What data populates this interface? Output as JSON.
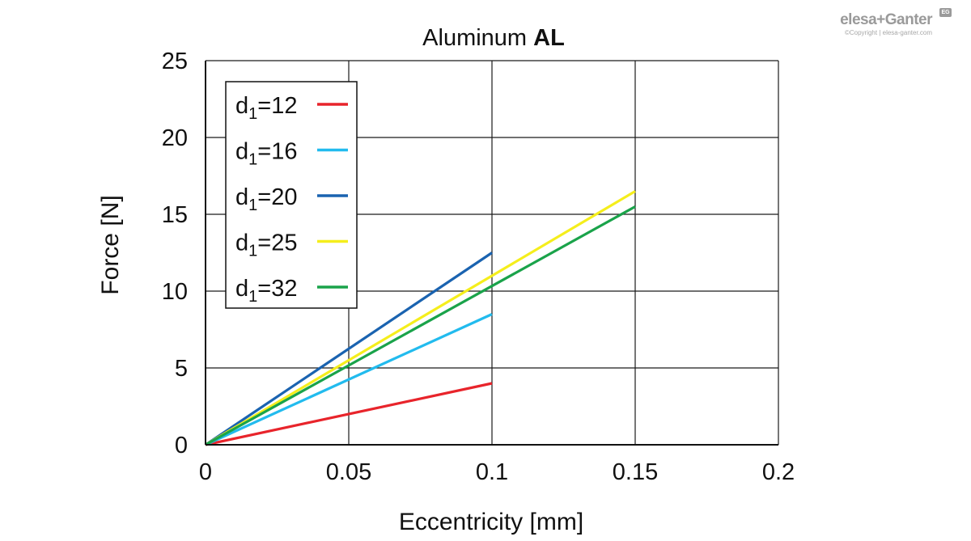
{
  "logo": {
    "main": "elesa+Ganter",
    "sub": "©Copyright | elesa-ganter.com",
    "badge": "EG"
  },
  "chart_data": {
    "type": "line",
    "title_regular": "Aluminum ",
    "title_bold": "AL",
    "xlabel": "Eccentricity [mm]",
    "ylabel": "Force [N]",
    "xlim": [
      0,
      0.2
    ],
    "ylim": [
      0,
      25
    ],
    "x_ticks": [
      0,
      0.05,
      0.1,
      0.15,
      0.2
    ],
    "x_tick_labels": [
      "0",
      "0.05",
      "0.1",
      "0.15",
      "0.2"
    ],
    "y_ticks": [
      0,
      5,
      10,
      15,
      20,
      25
    ],
    "y_tick_labels": [
      "0",
      "5",
      "10",
      "15",
      "20",
      "25"
    ],
    "grid": true,
    "legend_position": "top-left",
    "series": [
      {
        "label_base": "d",
        "label_sub": "1",
        "label_rest": "=12",
        "color": "#e8242b",
        "x": [
          0,
          0.1
        ],
        "y": [
          0,
          4
        ]
      },
      {
        "label_base": "d",
        "label_sub": "1",
        "label_rest": "=16",
        "color": "#22bbee",
        "x": [
          0,
          0.1
        ],
        "y": [
          0,
          8.5
        ]
      },
      {
        "label_base": "d",
        "label_sub": "1",
        "label_rest": "=20",
        "color": "#1a63b0",
        "x": [
          0,
          0.1
        ],
        "y": [
          0,
          12.5
        ]
      },
      {
        "label_base": "d",
        "label_sub": "1",
        "label_rest": "=25",
        "color": "#f5ee1c",
        "x": [
          0,
          0.15
        ],
        "y": [
          0,
          16.5
        ]
      },
      {
        "label_base": "d",
        "label_sub": "1",
        "label_rest": "=32",
        "color": "#1aa34a",
        "x": [
          0,
          0.15
        ],
        "y": [
          0,
          15.5
        ]
      }
    ]
  }
}
